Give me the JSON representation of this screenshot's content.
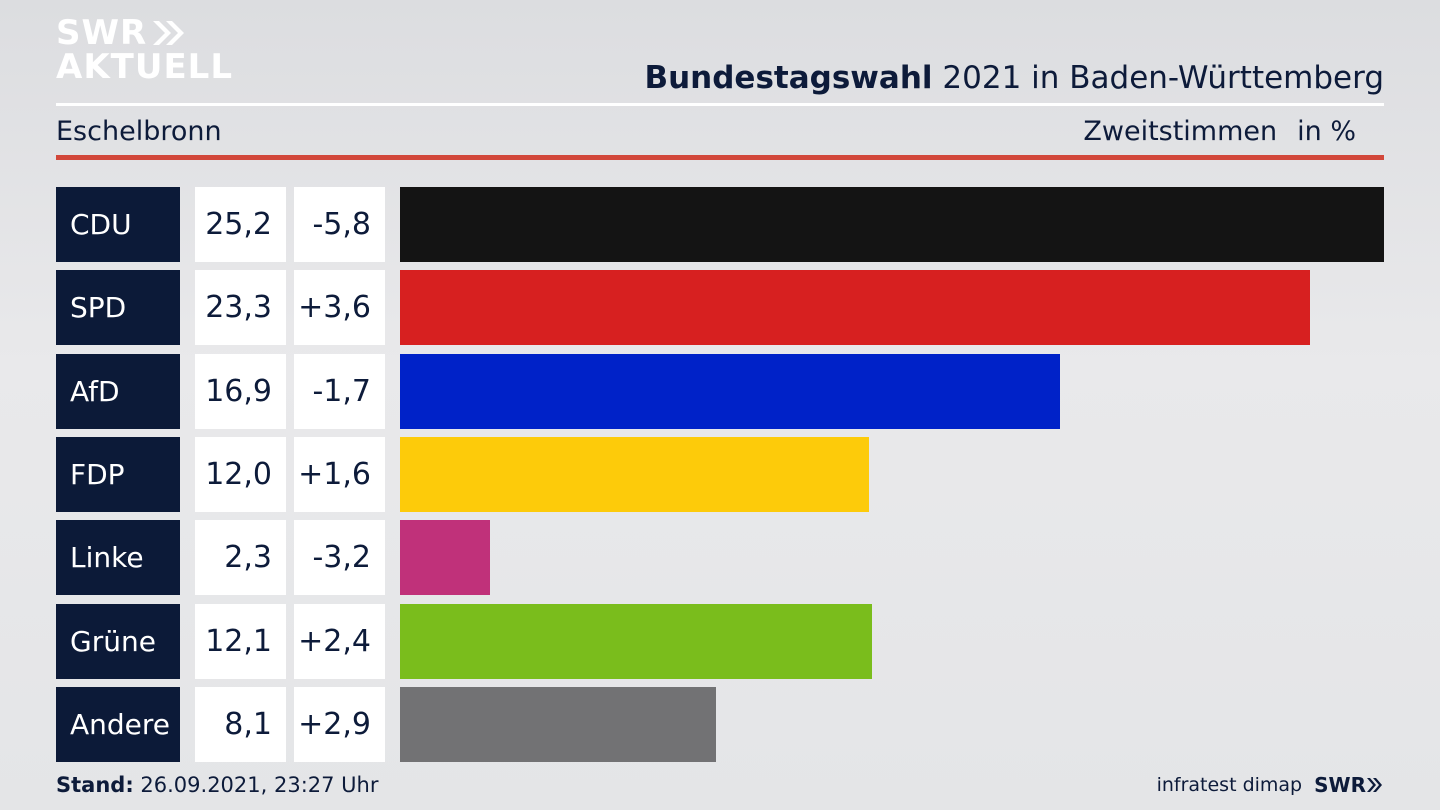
{
  "brand": {
    "logo_line1": "SWR",
    "logo_line2": "AKTUELL",
    "logo_color": "#ffffff"
  },
  "header": {
    "title_bold": "Bundestagswahl",
    "title_rest": " 2021 in Baden-Württemberg",
    "region": "Eschelbronn",
    "measure": "Zweitstimmen",
    "unit": "in %"
  },
  "chart_data": {
    "type": "bar",
    "title": "Bundestagswahl 2021 in Baden-Württemberg",
    "subtitle": "Eschelbronn",
    "ylabel": "Zweitstimmen in %",
    "categories": [
      "CDU",
      "SPD",
      "AfD",
      "FDP",
      "Linke",
      "Grüne",
      "Andere"
    ],
    "values": [
      25.2,
      23.3,
      16.9,
      12.0,
      2.3,
      12.1,
      8.1
    ],
    "value_labels": [
      "25,2",
      "23,3",
      "16,9",
      "12,0",
      "2,3",
      "12,1",
      "8,1"
    ],
    "diffs": [
      "-5,8",
      "+3,6",
      "-1,7",
      "+1,6",
      "-3,2",
      "+2,4",
      "+2,9"
    ],
    "colors": [
      "#141414",
      "#d72020",
      "#0022c8",
      "#fdcb0a",
      "#c0317a",
      "#7abd1c",
      "#727274"
    ],
    "xlim": [
      0,
      25.2
    ]
  },
  "footer": {
    "stand_label": "Stand:",
    "stand_value": " 26.09.2021, 23:27 Uhr",
    "source": "infratest dimap",
    "broadcaster": "SWR"
  }
}
